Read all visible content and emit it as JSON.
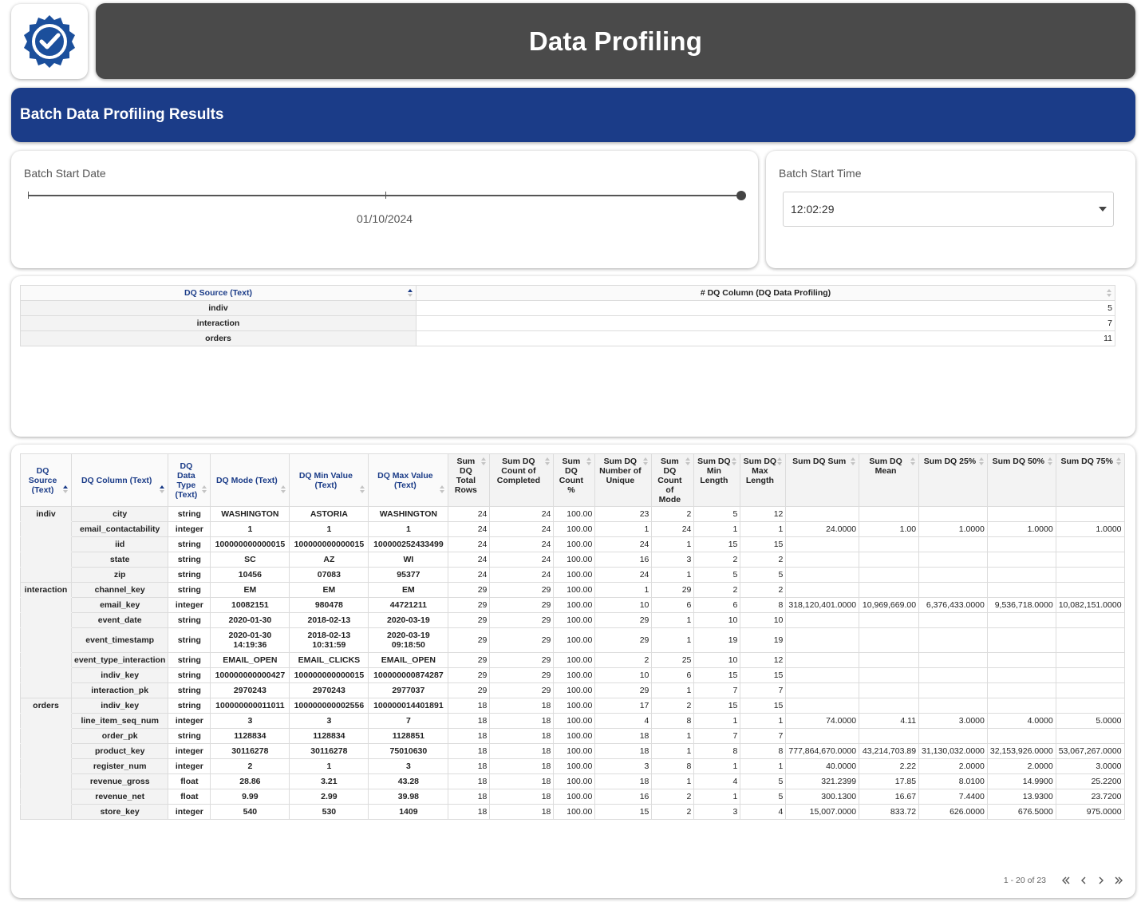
{
  "header": {
    "title": "Data Profiling",
    "logo_icon": "verified-badge-icon"
  },
  "section": {
    "title": "Batch Data Profiling Results"
  },
  "colors": {
    "title_bg": "#4a4a4a",
    "section_bg": "#1b3c88",
    "header_text": "#1b3c88"
  },
  "filters": {
    "date": {
      "label": "Batch Start Date",
      "value": "01/10/2024"
    },
    "time": {
      "label": "Batch Start Time",
      "value": "12:02:29"
    }
  },
  "summary": {
    "headers": [
      "DQ Source (Text)",
      "# DQ Column (DQ Data Profiling)"
    ],
    "rows": [
      {
        "source": "indiv",
        "count": "5"
      },
      {
        "source": "interaction",
        "count": "7"
      },
      {
        "source": "orders",
        "count": "11"
      }
    ]
  },
  "detail": {
    "headers": [
      "DQ Source (Text)",
      "DQ Column (Text)",
      "DQ Data Type (Text)",
      "DQ Mode (Text)",
      "DQ Min Value (Text)",
      "DQ Max Value (Text)",
      "Sum DQ Total Rows",
      "Sum DQ Count of Completed",
      "Sum DQ Count %",
      "Sum DQ Number of Unique",
      "Sum DQ Count of Mode",
      "Sum DQ Min Length",
      "Sum DQ Max Length",
      "Sum DQ Sum",
      "Sum DQ Mean",
      "Sum DQ 25%",
      "Sum DQ 50%",
      "Sum DQ 75%"
    ],
    "rows": [
      {
        "source": "indiv",
        "column": "city",
        "type": "string",
        "mode": "WASHINGTON",
        "min": "ASTORIA",
        "max": "WASHINGTON",
        "total": "24",
        "completed": "24",
        "pct": "100.00",
        "unique": "23",
        "mode_count": "2",
        "min_len": "5",
        "max_len": "12",
        "sum": "",
        "mean": "",
        "p25": "",
        "p50": "",
        "p75": ""
      },
      {
        "source": "",
        "column": "email_contactability",
        "type": "integer",
        "mode": "1",
        "min": "1",
        "max": "1",
        "total": "24",
        "completed": "24",
        "pct": "100.00",
        "unique": "1",
        "mode_count": "24",
        "min_len": "1",
        "max_len": "1",
        "sum": "24.0000",
        "mean": "1.00",
        "p25": "1.0000",
        "p50": "1.0000",
        "p75": "1.0000"
      },
      {
        "source": "",
        "column": "iid",
        "type": "string",
        "mode": "100000000000015",
        "min": "100000000000015",
        "max": "100000252433499",
        "total": "24",
        "completed": "24",
        "pct": "100.00",
        "unique": "24",
        "mode_count": "1",
        "min_len": "15",
        "max_len": "15",
        "sum": "",
        "mean": "",
        "p25": "",
        "p50": "",
        "p75": ""
      },
      {
        "source": "",
        "column": "state",
        "type": "string",
        "mode": "SC",
        "min": "AZ",
        "max": "WI",
        "total": "24",
        "completed": "24",
        "pct": "100.00",
        "unique": "16",
        "mode_count": "3",
        "min_len": "2",
        "max_len": "2",
        "sum": "",
        "mean": "",
        "p25": "",
        "p50": "",
        "p75": ""
      },
      {
        "source": "",
        "column": "zip",
        "type": "string",
        "mode": "10456",
        "min": "07083",
        "max": "95377",
        "total": "24",
        "completed": "24",
        "pct": "100.00",
        "unique": "24",
        "mode_count": "1",
        "min_len": "5",
        "max_len": "5",
        "sum": "",
        "mean": "",
        "p25": "",
        "p50": "",
        "p75": ""
      },
      {
        "source": "interaction",
        "column": "channel_key",
        "type": "string",
        "mode": "EM",
        "min": "EM",
        "max": "EM",
        "total": "29",
        "completed": "29",
        "pct": "100.00",
        "unique": "1",
        "mode_count": "29",
        "min_len": "2",
        "max_len": "2",
        "sum": "",
        "mean": "",
        "p25": "",
        "p50": "",
        "p75": ""
      },
      {
        "source": "",
        "column": "email_key",
        "type": "integer",
        "mode": "10082151",
        "min": "980478",
        "max": "44721211",
        "total": "29",
        "completed": "29",
        "pct": "100.00",
        "unique": "10",
        "mode_count": "6",
        "min_len": "6",
        "max_len": "8",
        "sum": "318,120,401.0000",
        "mean": "10,969,669.00",
        "p25": "6,376,433.0000",
        "p50": "9,536,718.0000",
        "p75": "10,082,151.0000"
      },
      {
        "source": "",
        "column": "event_date",
        "type": "string",
        "mode": "2020-01-30",
        "min": "2018-02-13",
        "max": "2020-03-19",
        "total": "29",
        "completed": "29",
        "pct": "100.00",
        "unique": "29",
        "mode_count": "1",
        "min_len": "10",
        "max_len": "10",
        "sum": "",
        "mean": "",
        "p25": "",
        "p50": "",
        "p75": ""
      },
      {
        "source": "",
        "column": "event_timestamp",
        "type": "string",
        "mode": "2020-01-30 14:19:36",
        "min": "2018-02-13 10:31:59",
        "max": "2020-03-19 09:18:50",
        "total": "29",
        "completed": "29",
        "pct": "100.00",
        "unique": "29",
        "mode_count": "1",
        "min_len": "19",
        "max_len": "19",
        "sum": "",
        "mean": "",
        "p25": "",
        "p50": "",
        "p75": ""
      },
      {
        "source": "",
        "column": "event_type_interaction",
        "type": "string",
        "mode": "EMAIL_OPEN",
        "min": "EMAIL_CLICKS",
        "max": "EMAIL_OPEN",
        "total": "29",
        "completed": "29",
        "pct": "100.00",
        "unique": "2",
        "mode_count": "25",
        "min_len": "10",
        "max_len": "12",
        "sum": "",
        "mean": "",
        "p25": "",
        "p50": "",
        "p75": ""
      },
      {
        "source": "",
        "column": "indiv_key",
        "type": "string",
        "mode": "100000000000427",
        "min": "100000000000015",
        "max": "100000000874287",
        "total": "29",
        "completed": "29",
        "pct": "100.00",
        "unique": "10",
        "mode_count": "6",
        "min_len": "15",
        "max_len": "15",
        "sum": "",
        "mean": "",
        "p25": "",
        "p50": "",
        "p75": ""
      },
      {
        "source": "",
        "column": "interaction_pk",
        "type": "string",
        "mode": "2970243",
        "min": "2970243",
        "max": "2977037",
        "total": "29",
        "completed": "29",
        "pct": "100.00",
        "unique": "29",
        "mode_count": "1",
        "min_len": "7",
        "max_len": "7",
        "sum": "",
        "mean": "",
        "p25": "",
        "p50": "",
        "p75": ""
      },
      {
        "source": "orders",
        "column": "indiv_key",
        "type": "string",
        "mode": "100000000011011",
        "min": "100000000002556",
        "max": "100000014401891",
        "total": "18",
        "completed": "18",
        "pct": "100.00",
        "unique": "17",
        "mode_count": "2",
        "min_len": "15",
        "max_len": "15",
        "sum": "",
        "mean": "",
        "p25": "",
        "p50": "",
        "p75": ""
      },
      {
        "source": "",
        "column": "line_item_seq_num",
        "type": "integer",
        "mode": "3",
        "min": "3",
        "max": "7",
        "total": "18",
        "completed": "18",
        "pct": "100.00",
        "unique": "4",
        "mode_count": "8",
        "min_len": "1",
        "max_len": "1",
        "sum": "74.0000",
        "mean": "4.11",
        "p25": "3.0000",
        "p50": "4.0000",
        "p75": "5.0000"
      },
      {
        "source": "",
        "column": "order_pk",
        "type": "string",
        "mode": "1128834",
        "min": "1128834",
        "max": "1128851",
        "total": "18",
        "completed": "18",
        "pct": "100.00",
        "unique": "18",
        "mode_count": "1",
        "min_len": "7",
        "max_len": "7",
        "sum": "",
        "mean": "",
        "p25": "",
        "p50": "",
        "p75": ""
      },
      {
        "source": "",
        "column": "product_key",
        "type": "integer",
        "mode": "30116278",
        "min": "30116278",
        "max": "75010630",
        "total": "18",
        "completed": "18",
        "pct": "100.00",
        "unique": "18",
        "mode_count": "1",
        "min_len": "8",
        "max_len": "8",
        "sum": "777,864,670.0000",
        "mean": "43,214,703.89",
        "p25": "31,130,032.0000",
        "p50": "32,153,926.0000",
        "p75": "53,067,267.0000"
      },
      {
        "source": "",
        "column": "register_num",
        "type": "integer",
        "mode": "2",
        "min": "1",
        "max": "3",
        "total": "18",
        "completed": "18",
        "pct": "100.00",
        "unique": "3",
        "mode_count": "8",
        "min_len": "1",
        "max_len": "1",
        "sum": "40.0000",
        "mean": "2.22",
        "p25": "2.0000",
        "p50": "2.0000",
        "p75": "3.0000"
      },
      {
        "source": "",
        "column": "revenue_gross",
        "type": "float",
        "mode": "28.86",
        "min": "3.21",
        "max": "43.28",
        "total": "18",
        "completed": "18",
        "pct": "100.00",
        "unique": "18",
        "mode_count": "1",
        "min_len": "4",
        "max_len": "5",
        "sum": "321.2399",
        "mean": "17.85",
        "p25": "8.0100",
        "p50": "14.9900",
        "p75": "25.2200"
      },
      {
        "source": "",
        "column": "revenue_net",
        "type": "float",
        "mode": "9.99",
        "min": "2.99",
        "max": "39.98",
        "total": "18",
        "completed": "18",
        "pct": "100.00",
        "unique": "16",
        "mode_count": "2",
        "min_len": "1",
        "max_len": "5",
        "sum": "300.1300",
        "mean": "16.67",
        "p25": "7.4400",
        "p50": "13.9300",
        "p75": "23.7200"
      },
      {
        "source": "",
        "column": "store_key",
        "type": "integer",
        "mode": "540",
        "min": "530",
        "max": "1409",
        "total": "18",
        "completed": "18",
        "pct": "100.00",
        "unique": "15",
        "mode_count": "2",
        "min_len": "3",
        "max_len": "4",
        "sum": "15,007.0000",
        "mean": "833.72",
        "p25": "626.0000",
        "p50": "676.5000",
        "p75": "975.0000"
      }
    ]
  },
  "pagination": {
    "text": "1 - 20 of 23",
    "first_icon": "double-chevron-left-icon",
    "prev_icon": "chevron-left-icon",
    "next_icon": "chevron-right-icon",
    "last_icon": "double-chevron-right-icon"
  }
}
